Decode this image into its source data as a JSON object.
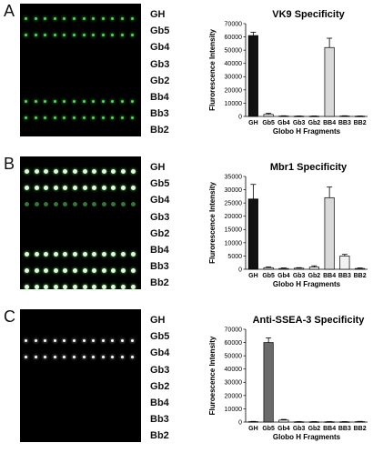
{
  "panels": [
    {
      "letter": "A",
      "labels": [
        "GH",
        "Gb5",
        "Gb4",
        "Gb3",
        "Gb2",
        "Bb4",
        "Bb3",
        "Bb2"
      ],
      "spots": {
        "rows": [
          0,
          1,
          5,
          6
        ],
        "dim_rows": [],
        "color": "#4cdc50"
      },
      "chart_data": {
        "type": "bar",
        "title": "VK9 Specificity",
        "ylabel": "Flurorescence Intensity",
        "xlabel": "Globo H Fragments",
        "categories": [
          "GH",
          "Gb5",
          "Gb4",
          "Gb3",
          "Gb2",
          "BB4",
          "BB3",
          "BB2"
        ],
        "values": [
          61000,
          1500,
          300,
          200,
          200,
          52000,
          300,
          200
        ],
        "errors": [
          2500,
          800,
          200,
          150,
          150,
          7000,
          200,
          150
        ],
        "ylim": [
          0,
          70000
        ],
        "yticks": [
          "0",
          "10000",
          "20000",
          "30000",
          "40000",
          "50000",
          "60000",
          "70000"
        ],
        "bar_colors": [
          "#111111",
          "#f2f2f2",
          "#f2f2f2",
          "#f2f2f2",
          "#f2f2f2",
          "#d9d9d9",
          "#d9d9d9",
          "#d9d9d9"
        ]
      }
    },
    {
      "letter": "B",
      "labels": [
        "GH",
        "Gb5",
        "Gb4",
        "Gb3",
        "Gb2",
        "Bb4",
        "Bb3",
        "Bb2"
      ],
      "spots": {
        "rows": [
          0,
          1,
          5,
          6,
          7
        ],
        "dim_rows": [
          2
        ],
        "color": "#e6f7e0"
      },
      "chart_data": {
        "type": "bar",
        "title": "Mbr1 Specificity",
        "ylabel": "Flurorescence Intensity",
        "xlabel": "Globo H Fragments",
        "categories": [
          "GH",
          "Gb5",
          "Gb4",
          "Gb3",
          "Gb2",
          "BB4",
          "BB3",
          "BB2"
        ],
        "values": [
          26500,
          600,
          300,
          400,
          800,
          27000,
          5000,
          300
        ],
        "errors": [
          5500,
          300,
          200,
          200,
          500,
          4000,
          600,
          200
        ],
        "ylim": [
          0,
          35000
        ],
        "yticks": [
          "0",
          "5000",
          "10000",
          "15000",
          "20000",
          "25000",
          "30000",
          "35000"
        ],
        "bar_colors": [
          "#111111",
          "#f2f2f2",
          "#f2f2f2",
          "#f2f2f2",
          "#f2f2f2",
          "#d9d9d9",
          "#f2f2f2",
          "#f2f2f2"
        ]
      }
    },
    {
      "letter": "C",
      "labels": [
        "GH",
        "Gb5",
        "Gb4",
        "Gb3",
        "Gb2",
        "Bb4",
        "Bb3",
        "Bb2"
      ],
      "spots": {
        "rows": [
          1,
          2
        ],
        "dim_rows": [],
        "color": "#ffffff"
      },
      "chart_data": {
        "type": "bar",
        "title": "Anti-SSEA-3 Specificity",
        "ylabel": "Fluroescence Intensity",
        "xlabel": "Globo H Fragments",
        "categories": [
          "GH",
          "Gb5",
          "Gb4",
          "Gb3",
          "Gb2",
          "BB4",
          "BB3",
          "BB2"
        ],
        "values": [
          300,
          60000,
          1500,
          200,
          200,
          200,
          200,
          300
        ],
        "errors": [
          200,
          3500,
          500,
          150,
          150,
          150,
          150,
          200
        ],
        "ylim": [
          0,
          70000
        ],
        "yticks": [
          "0",
          "10000",
          "20000",
          "30000",
          "40000",
          "50000",
          "60000",
          "70000"
        ],
        "bar_colors": [
          "#f2f2f2",
          "#6b6b6b",
          "#f2f2f2",
          "#f2f2f2",
          "#f2f2f2",
          "#f2f2f2",
          "#f2f2f2",
          "#f2f2f2"
        ]
      }
    }
  ]
}
